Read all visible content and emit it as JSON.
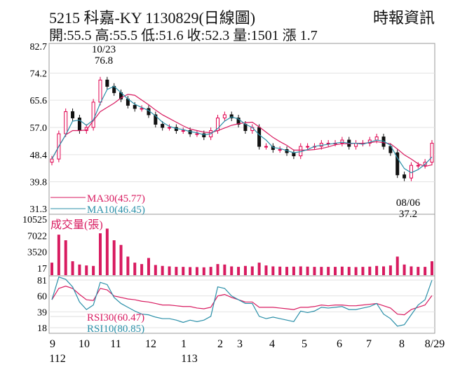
{
  "header": {
    "title": "5215  科嘉-KY 1130829(日線圖)",
    "quote": "開:55.5 高:55.5 低:51.6 收:52.3 量:1501 漲 1.7",
    "source": "時報資訊"
  },
  "chart_data": {
    "type": "candlestick",
    "price_axis": {
      "ticks": [
        "82.7",
        "74.2",
        "65.6",
        "57.0",
        "48.4",
        "39.8",
        "31.3"
      ],
      "range": [
        31.3,
        82.7
      ]
    },
    "volume_axis": {
      "label": "成交量(張)",
      "ticks": [
        "10525",
        "7022",
        "3520",
        "17"
      ],
      "range": [
        17,
        10525
      ]
    },
    "rsi_axis": {
      "ticks": [
        "81",
        "60",
        "39",
        "18"
      ],
      "range": [
        18,
        81
      ]
    },
    "x_labels": [
      "9",
      "10",
      "11",
      "12",
      "1",
      "2",
      "3",
      "4",
      "5",
      "6",
      "7",
      "8",
      "8/29"
    ],
    "year_labels": [
      "112",
      "113"
    ],
    "legend": {
      "ma30": "MA30(45.77)",
      "ma10": "MA10(46.45)",
      "rsi30": "RSI30(60.47)",
      "rsi10": "RSI10(80.85)"
    },
    "annotations": {
      "high_date": "10/23",
      "high_value": "76.8",
      "low_date": "08/06",
      "low_value": "37.2"
    },
    "closes": [
      47,
      55,
      62,
      60,
      56,
      57,
      65,
      72,
      70,
      68,
      66,
      64,
      63,
      63,
      61,
      58,
      57,
      57,
      56,
      56,
      55,
      55,
      54,
      56,
      60,
      61,
      60,
      58,
      56,
      57,
      51,
      51,
      50,
      50,
      49,
      48,
      51,
      51,
      51,
      52,
      52,
      52,
      53,
      51,
      52,
      52,
      53,
      54,
      51,
      49,
      42,
      41,
      45,
      45,
      46,
      52
    ],
    "volume": [
      1200,
      7200,
      6000,
      1500,
      800,
      600,
      500,
      7500,
      8500,
      6000,
      5000,
      2500,
      1200,
      900,
      2200,
      700,
      500,
      400,
      300,
      300,
      250,
      250,
      200,
      300,
      900,
      800,
      400,
      300,
      500,
      400,
      1200,
      600,
      400,
      350,
      300,
      350,
      400,
      350,
      300,
      300,
      300,
      300,
      350,
      300,
      250,
      300,
      350,
      500,
      400,
      600,
      2500,
      800,
      400,
      300,
      300,
      1500
    ],
    "rsi30": [
      55,
      70,
      73,
      70,
      62,
      55,
      54,
      70,
      68,
      60,
      58,
      56,
      55,
      53,
      52,
      50,
      48,
      48,
      47,
      46,
      46,
      44,
      43,
      45,
      60,
      62,
      58,
      55,
      52,
      52,
      45,
      45,
      45,
      44,
      43,
      42,
      45,
      45,
      46,
      48,
      47,
      48,
      48,
      47,
      47,
      48,
      49,
      50,
      47,
      44,
      36,
      35,
      42,
      45,
      48,
      60.47
    ],
    "rsi10": [
      55,
      85,
      82,
      72,
      52,
      42,
      48,
      78,
      75,
      58,
      50,
      45,
      40,
      36,
      35,
      32,
      30,
      30,
      28,
      25,
      28,
      26,
      28,
      33,
      72,
      70,
      60,
      55,
      50,
      50,
      33,
      30,
      32,
      30,
      28,
      26,
      40,
      38,
      40,
      45,
      44,
      45,
      46,
      42,
      42,
      44,
      46,
      50,
      36,
      30,
      20,
      22,
      35,
      48,
      55,
      80.85
    ]
  },
  "colors": {
    "up": "#e0004e",
    "down": "#111111",
    "ma30": "#d81b60",
    "ma10": "#2a8fa8",
    "volume": "#d81b60"
  }
}
